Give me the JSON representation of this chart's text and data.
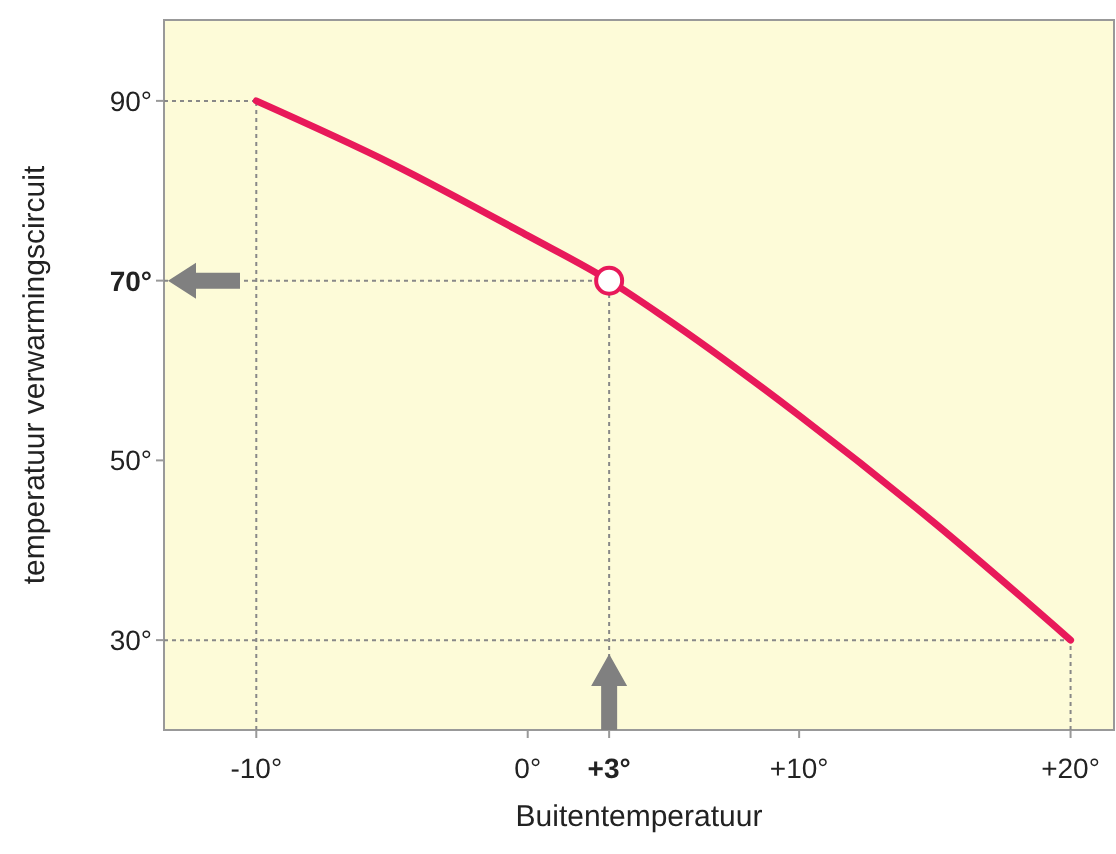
{
  "chart_data": {
    "type": "line",
    "xlabel": "Buitentemperatuur",
    "ylabel": "temperatuur verwarmingscircuit",
    "xlim": [
      -13.4,
      21.6
    ],
    "ylim": [
      20,
      99
    ],
    "xticks": [
      {
        "value": -10,
        "label": "-10°"
      },
      {
        "value": 0,
        "label": "0°"
      },
      {
        "value": 3,
        "label": "+3°"
      },
      {
        "value": 10,
        "label": "+10°"
      },
      {
        "value": 20,
        "label": "+20°"
      }
    ],
    "yticks": [
      {
        "value": 30,
        "label": "30°"
      },
      {
        "value": 50,
        "label": "50°"
      },
      {
        "value": 70,
        "label": "70°"
      },
      {
        "value": 90,
        "label": "90°"
      }
    ],
    "series": [
      {
        "color": "#e8195a",
        "x": [
          -10,
          -5,
          0,
          3,
          5,
          10,
          15,
          20
        ],
        "values": [
          90,
          83,
          75,
          70,
          66,
          55,
          43,
          30
        ]
      },
      {
        "type": "scatter",
        "color": "#e8195a",
        "marker": "circle",
        "x": [
          3
        ],
        "values": [
          70
        ]
      }
    ],
    "ref_lines": [
      {
        "axis": "x",
        "value": -10,
        "line_style": "dotted",
        "color": "#888888"
      },
      {
        "axis": "x",
        "value": 3,
        "line_style": "dotted",
        "color": "#888888"
      },
      {
        "axis": "x",
        "value": 20,
        "line_style": "dotted",
        "color": "#888888"
      },
      {
        "axis": "y",
        "value": 90,
        "line_style": "dotted",
        "color": "#888888"
      },
      {
        "axis": "y",
        "value": 70,
        "line_style": "dotted",
        "color": "#888888"
      },
      {
        "axis": "y",
        "value": 30,
        "line_style": "dotted",
        "color": "#888888"
      }
    ],
    "grid": false
  }
}
